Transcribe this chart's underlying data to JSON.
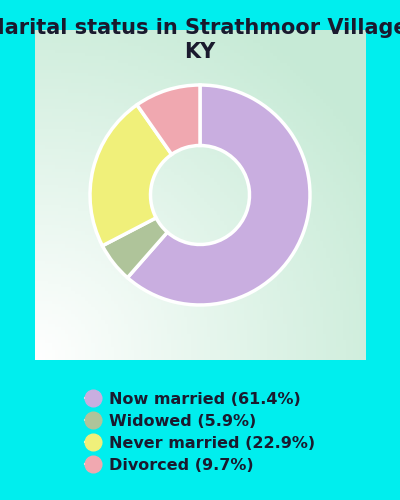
{
  "title": "Marital status in Strathmoor Village,\nKY",
  "slices": [
    61.4,
    5.9,
    22.9,
    9.7
  ],
  "labels": [
    "Now married (61.4%)",
    "Widowed (5.9%)",
    "Never married (22.9%)",
    "Divorced (9.7%)"
  ],
  "colors": [
    "#c9aee0",
    "#afc49a",
    "#f0f07a",
    "#f0a8b0"
  ],
  "background_color": "#00eeee",
  "chart_bg_color": "#e8f2e8",
  "donut_width": 0.55,
  "start_angle": 90,
  "title_fontsize": 15,
  "legend_fontsize": 11.5,
  "wedge_edge_color": "white",
  "wedge_linewidth": 2.5
}
